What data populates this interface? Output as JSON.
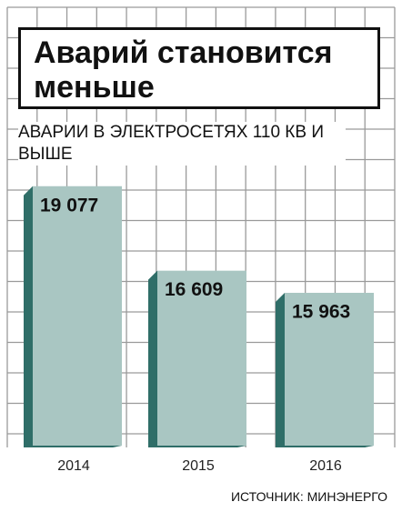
{
  "chart_data": {
    "type": "bar",
    "title": "Аварий становится меньше",
    "subtitle": "АВАРИИ В ЭЛЕКТРОСЕТЯХ 110 КВ И ВЫШЕ",
    "categories": [
      "2014",
      "2015",
      "2016"
    ],
    "values": [
      19077,
      16609,
      15963
    ],
    "value_labels": [
      "19 077",
      "16 609",
      "15 963"
    ],
    "color": "#a9c6c2",
    "ylim": [
      11500,
      20000
    ],
    "source": "ИСТОЧНИК: МИНЭНЕРГО"
  }
}
